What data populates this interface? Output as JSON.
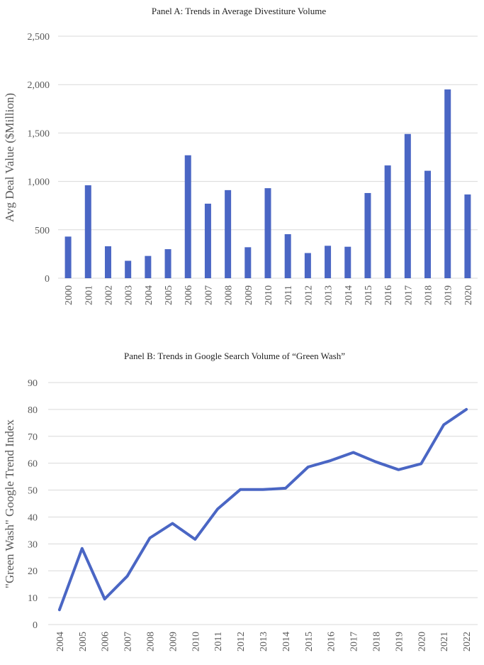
{
  "chart_data": [
    {
      "type": "bar",
      "title": "Panel A: Trends in Average Divestiture Volume",
      "xlabel": "",
      "ylabel": "Avg Deal Value ($Million)",
      "ylim": [
        0,
        2500
      ],
      "ytick_values": [
        0,
        500,
        1000,
        1500,
        2000,
        2500
      ],
      "ytick_labels": [
        "0",
        "500",
        "1,000",
        "1,500",
        "2,000",
        "2,500"
      ],
      "grid": true,
      "categories": [
        "2000",
        "2001",
        "2002",
        "2003",
        "2004",
        "2005",
        "2006",
        "2007",
        "2008",
        "2009",
        "2010",
        "2011",
        "2012",
        "2013",
        "2014",
        "2015",
        "2016",
        "2017",
        "2018",
        "2019",
        "2020"
      ],
      "series": [
        {
          "values": [
            430,
            960,
            330,
            180,
            230,
            300,
            1270,
            770,
            910,
            320,
            930,
            455,
            260,
            335,
            325,
            880,
            1165,
            1490,
            1110,
            1950,
            865
          ]
        }
      ],
      "color": "#4a66c4"
    },
    {
      "type": "line",
      "title": "Panel  B: Trends in Google Search Volume of “Green Wash”",
      "xlabel": "",
      "ylabel": "\"Green Wash\" Google Trend Index",
      "ylim": [
        0,
        90
      ],
      "ytick_values": [
        0,
        10,
        20,
        30,
        40,
        50,
        60,
        70,
        80,
        90
      ],
      "ytick_labels": [
        "0",
        "10",
        "20",
        "30",
        "40",
        "50",
        "60",
        "70",
        "80",
        "90"
      ],
      "grid": true,
      "categories": [
        "2004",
        "2005",
        "2006",
        "2007",
        "2008",
        "2009",
        "2010",
        "2011",
        "2012",
        "2013",
        "2014",
        "2015",
        "2016",
        "2017",
        "2018",
        "2019",
        "2020",
        "2021",
        "2022"
      ],
      "series": [
        {
          "values": [
            5.5,
            28.3,
            9.5,
            18,
            32.2,
            37.6,
            31.7,
            43,
            50.2,
            50.2,
            50.7,
            58.6,
            61,
            64,
            60.5,
            57.6,
            59.8,
            74.3,
            80
          ]
        }
      ],
      "color": "#4a66c4"
    }
  ]
}
